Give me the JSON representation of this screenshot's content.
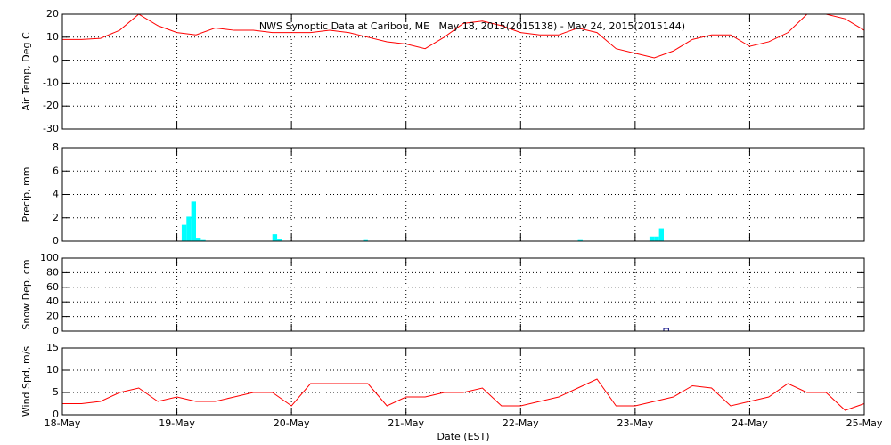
{
  "chart_data": [
    {
      "type": "line",
      "title": "NWS Synoptic Data at Caribou, ME   May 18, 2015(2015138) - May 24, 2015(2015144)",
      "ylabel": "Air Temp, Deg C",
      "xlim": [
        0,
        168
      ],
      "xticks": [
        0,
        24,
        48,
        72,
        96,
        120,
        144,
        168
      ],
      "ylim": [
        -30,
        20
      ],
      "yticks": [
        -30,
        -20,
        -10,
        0,
        10,
        20
      ],
      "grid": true,
      "series": [
        {
          "color": "#ff0000",
          "x": [
            0,
            4,
            8,
            12,
            16,
            20,
            24,
            28,
            32,
            36,
            40,
            44,
            48,
            52,
            56,
            60,
            64,
            68,
            72,
            76,
            80,
            84,
            88,
            92,
            96,
            100,
            104,
            108,
            112,
            116,
            120,
            124,
            128,
            132,
            136,
            140,
            144,
            148,
            152,
            156,
            160,
            164,
            168
          ],
          "values": [
            9,
            9,
            9.5,
            13,
            20,
            15,
            12,
            11,
            14,
            13,
            13,
            12,
            12,
            12,
            13,
            12,
            10,
            8,
            7,
            5,
            10,
            16,
            17,
            15,
            12,
            11,
            11,
            14,
            12,
            5,
            3,
            1,
            4,
            9,
            11,
            11,
            6,
            8,
            12,
            20,
            20,
            18,
            13
          ]
        }
      ]
    },
    {
      "type": "bar",
      "ylabel": "Precip, mm",
      "xlim": [
        0,
        168
      ],
      "xticks": [
        0,
        24,
        48,
        72,
        96,
        120,
        144,
        168
      ],
      "ylim": [
        0,
        8
      ],
      "yticks": [
        0,
        2,
        4,
        6,
        8
      ],
      "grid": true,
      "series": [
        {
          "color": "#00ffff",
          "x": [
            25,
            26,
            27,
            28,
            29,
            44,
            45,
            63,
            108,
            123,
            124,
            125
          ],
          "values": [
            1.4,
            2.1,
            3.4,
            0.3,
            0.1,
            0.6,
            0.2,
            0.1,
            0.1,
            0.4,
            0.4,
            1.1
          ]
        }
      ]
    },
    {
      "type": "bar",
      "ylabel": "Snow Dep, cm",
      "xlim": [
        0,
        168
      ],
      "xticks": [
        0,
        24,
        48,
        72,
        96,
        120,
        144,
        168
      ],
      "ylim": [
        0,
        100
      ],
      "yticks": [
        0,
        20,
        40,
        60,
        80,
        100
      ],
      "grid": true,
      "series": [
        {
          "color": "#000080",
          "x": [
            126
          ],
          "values": [
            0
          ]
        }
      ]
    },
    {
      "type": "line",
      "ylabel": "Wind Spd, m/s",
      "xlabel": "Date (EST)",
      "xlim": [
        0,
        168
      ],
      "xticks": [
        {
          "value": 0,
          "label": "18-May"
        },
        {
          "value": 24,
          "label": "19-May"
        },
        {
          "value": 48,
          "label": "20-May"
        },
        {
          "value": 72,
          "label": "21-May"
        },
        {
          "value": 96,
          "label": "22-May"
        },
        {
          "value": 120,
          "label": "23-May"
        },
        {
          "value": 144,
          "label": "24-May"
        },
        {
          "value": 168,
          "label": "25-May"
        }
      ],
      "ylim": [
        0,
        15
      ],
      "yticks": [
        0,
        5,
        10,
        15
      ],
      "grid": true,
      "series": [
        {
          "color": "#ff0000",
          "x": [
            0,
            4,
            8,
            12,
            16,
            20,
            24,
            28,
            32,
            36,
            40,
            44,
            48,
            52,
            56,
            60,
            64,
            68,
            72,
            76,
            80,
            84,
            88,
            92,
            96,
            100,
            104,
            108,
            112,
            116,
            120,
            124,
            128,
            132,
            136,
            140,
            144,
            148,
            152,
            156,
            160,
            164,
            168
          ],
          "values": [
            2.5,
            2.5,
            3,
            5,
            6,
            3,
            4,
            3,
            3,
            4,
            5,
            5,
            2,
            7,
            7,
            7,
            7,
            2,
            4,
            4,
            5,
            5,
            6,
            2,
            2,
            3,
            4,
            6,
            8,
            2,
            2,
            3,
            4,
            6.5,
            6,
            2,
            3,
            4,
            7,
            5,
            5,
            1,
            2.5
          ]
        }
      ]
    }
  ]
}
